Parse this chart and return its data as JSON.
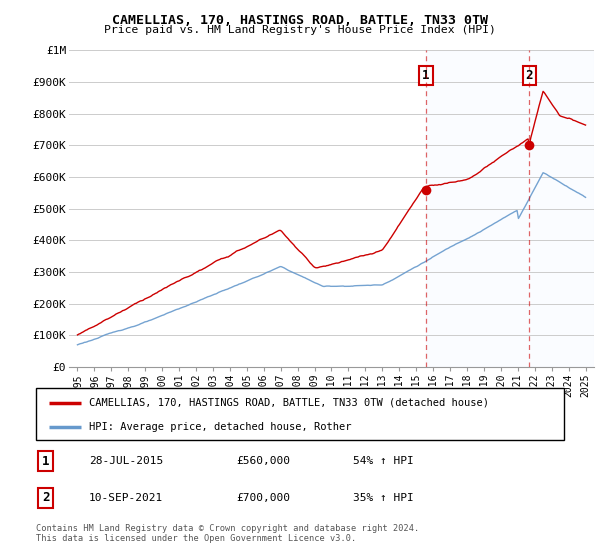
{
  "title": "CAMELLIAS, 170, HASTINGS ROAD, BATTLE, TN33 0TW",
  "subtitle": "Price paid vs. HM Land Registry's House Price Index (HPI)",
  "legend_line1": "CAMELLIAS, 170, HASTINGS ROAD, BATTLE, TN33 0TW (detached house)",
  "legend_line2": "HPI: Average price, detached house, Rother",
  "footer": "Contains HM Land Registry data © Crown copyright and database right 2024.\nThis data is licensed under the Open Government Licence v3.0.",
  "sale1_label": "1",
  "sale1_date": "28-JUL-2015",
  "sale1_price": "£560,000",
  "sale1_hpi": "54% ↑ HPI",
  "sale1_x": 2015.57,
  "sale1_y": 560000,
  "sale2_label": "2",
  "sale2_date": "10-SEP-2021",
  "sale2_price": "£700,000",
  "sale2_hpi": "35% ↑ HPI",
  "sale2_x": 2021.69,
  "sale2_y": 700000,
  "ylim": [
    0,
    1000000
  ],
  "yticks": [
    0,
    100000,
    200000,
    300000,
    400000,
    500000,
    600000,
    700000,
    800000,
    900000,
    1000000
  ],
  "ytick_labels": [
    "£0",
    "£100K",
    "£200K",
    "£300K",
    "£400K",
    "£500K",
    "£600K",
    "£700K",
    "£800K",
    "£900K",
    "£1M"
  ],
  "xlim_start": 1994.5,
  "xlim_end": 2025.5,
  "xticks": [
    1995,
    1996,
    1997,
    1998,
    1999,
    2000,
    2001,
    2002,
    2003,
    2004,
    2005,
    2006,
    2007,
    2008,
    2009,
    2010,
    2011,
    2012,
    2013,
    2014,
    2015,
    2016,
    2017,
    2018,
    2019,
    2020,
    2021,
    2022,
    2023,
    2024,
    2025
  ],
  "property_color": "#cc0000",
  "hpi_color": "#6699cc",
  "vline_color": "#cc0000",
  "highlight_color": "#ddeeff",
  "background_color": "#ffffff",
  "grid_color": "#cccccc"
}
